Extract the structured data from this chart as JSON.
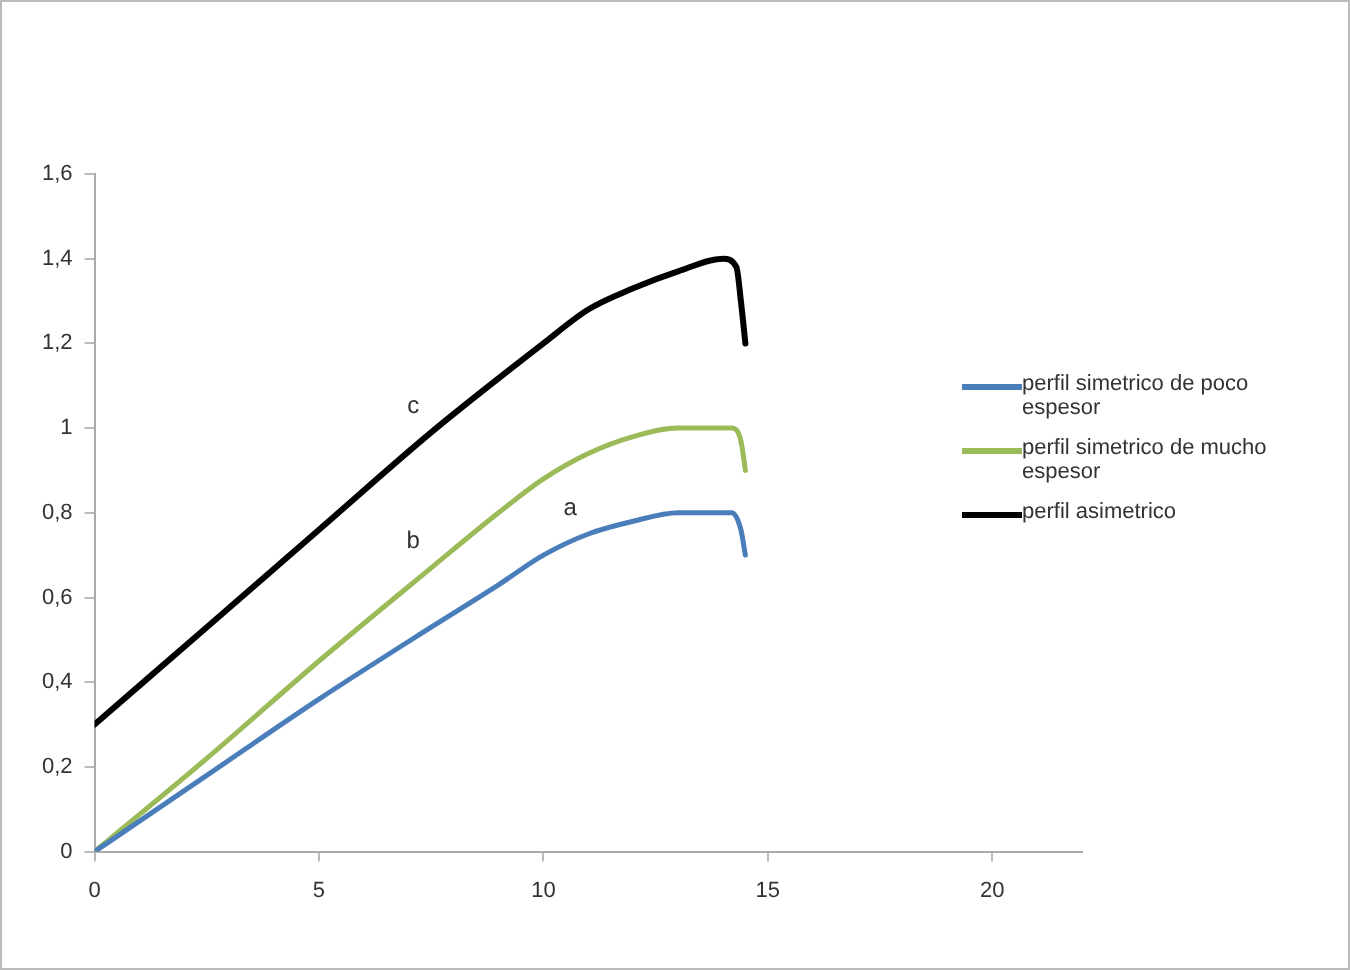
{
  "chart_data": {
    "type": "line",
    "xlim": [
      0,
      22
    ],
    "xticks": [
      0,
      5,
      10,
      15,
      20
    ],
    "ylim": [
      0,
      1.6
    ],
    "yticks": [
      0,
      {
        "value": 0.2,
        "label": "0,2"
      },
      {
        "value": 0.4,
        "label": "0,4"
      },
      {
        "value": 0.6,
        "label": "0,6"
      },
      {
        "value": 0.8,
        "label": "0,8"
      },
      1,
      {
        "value": 1.2,
        "label": "1,2"
      },
      {
        "value": 1.4,
        "label": "1,4"
      },
      {
        "value": 1.6,
        "label": "1,6"
      }
    ],
    "grid": false,
    "legend": "right",
    "marker": "none",
    "line_style": "solid",
    "series": [
      {
        "name": "perfil simetrico de poco espesor",
        "color": "#4a7ebb",
        "x": [
          0,
          2.5,
          5,
          7.5,
          9,
          10,
          11,
          12,
          13,
          14.2,
          14.4,
          14.5
        ],
        "values": [
          0,
          0.18,
          0.36,
          0.53,
          0.63,
          0.7,
          0.75,
          0.78,
          0.8,
          0.8,
          0.76,
          0.7
        ]
      },
      {
        "name": "perfil simetrico de mucho espesor",
        "color": "#9bbb59",
        "x": [
          0,
          2.5,
          5,
          7.5,
          9,
          10,
          11,
          12,
          13,
          14.2,
          14.4,
          14.5
        ],
        "values": [
          0,
          0.22,
          0.45,
          0.67,
          0.8,
          0.88,
          0.94,
          0.98,
          1,
          1,
          0.97,
          0.9
        ]
      },
      {
        "name": "perfil asimetrico",
        "color": "#000000",
        "x": [
          0,
          2.5,
          5,
          7.5,
          10,
          11,
          12,
          13,
          14,
          14.3,
          14.4,
          14.5
        ],
        "values": [
          0.3,
          0.53,
          0.76,
          0.99,
          1.2,
          1.28,
          1.33,
          1.37,
          1.4,
          1.38,
          1.3,
          1.2
        ]
      }
    ],
    "annotations": [
      "a",
      "b",
      "c"
    ]
  }
}
